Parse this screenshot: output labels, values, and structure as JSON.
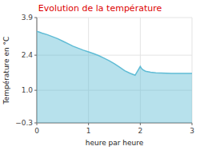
{
  "chart_data": {
    "type": "area",
    "title": "Evolution de la température",
    "x_label": "heure par heure",
    "y_label": "Température en °C",
    "x": [
      0,
      0.05,
      0.1,
      0.2,
      0.3,
      0.4,
      0.5,
      0.6,
      0.7,
      0.8,
      0.9,
      1.0,
      1.1,
      1.2,
      1.3,
      1.4,
      1.5,
      1.6,
      1.7,
      1.8,
      1.9,
      2.0,
      2.02,
      2.05,
      2.1,
      2.2,
      2.3,
      2.4,
      2.5,
      2.6,
      2.7,
      2.8,
      2.9,
      3.0
    ],
    "values": [
      3.35,
      3.32,
      3.28,
      3.22,
      3.14,
      3.06,
      2.96,
      2.86,
      2.76,
      2.68,
      2.6,
      2.53,
      2.46,
      2.38,
      2.28,
      2.18,
      2.06,
      1.92,
      1.78,
      1.68,
      1.6,
      1.95,
      1.88,
      1.82,
      1.76,
      1.72,
      1.7,
      1.69,
      1.68,
      1.67,
      1.67,
      1.67,
      1.67,
      1.67
    ],
    "color": "#60bcd5",
    "xlim": [
      0,
      3
    ],
    "ylim": [
      -0.3,
      3.9
    ],
    "xticks": [
      0,
      1,
      2,
      3
    ],
    "yticks": [
      {
        "value": -0.3,
        "label": "−0.3"
      },
      {
        "value": 1.0,
        "label": "1.0"
      },
      2.4,
      3.9
    ],
    "grid": true
  }
}
